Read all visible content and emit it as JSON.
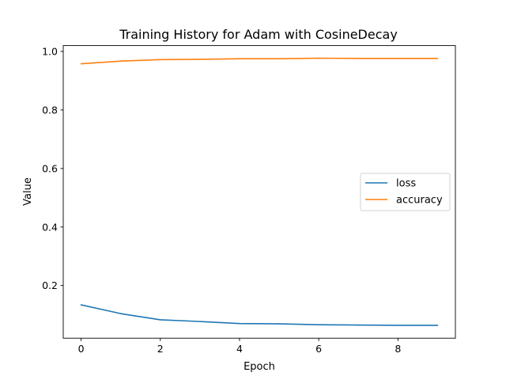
{
  "chart_data": {
    "type": "line",
    "title": "Training History for Adam with CosineDecay",
    "xlabel": "Epoch",
    "ylabel": "Value",
    "xlim": [
      -0.45,
      9.45
    ],
    "ylim": [
      0.02,
      1.02
    ],
    "x": [
      0,
      1,
      2,
      3,
      4,
      5,
      6,
      7,
      8,
      9
    ],
    "xticks": [
      0,
      2,
      4,
      6,
      8
    ],
    "yticks": [
      0.2,
      0.4,
      0.6,
      0.8,
      1.0
    ],
    "xtick_labels": [
      "0",
      "2",
      "4",
      "6",
      "8"
    ],
    "ytick_labels": [
      "0.2",
      "0.4",
      "0.6",
      "0.8",
      "1.0"
    ],
    "grid": false,
    "legend_position": "center-right",
    "series": [
      {
        "name": "loss",
        "color": "#1f77b4",
        "values": [
          0.134,
          0.104,
          0.083,
          0.077,
          0.07,
          0.069,
          0.066,
          0.065,
          0.064,
          0.064
        ]
      },
      {
        "name": "accuracy",
        "color": "#ff7f0e",
        "values": [
          0.958,
          0.967,
          0.972,
          0.973,
          0.975,
          0.975,
          0.977,
          0.976,
          0.976,
          0.976
        ]
      }
    ]
  }
}
